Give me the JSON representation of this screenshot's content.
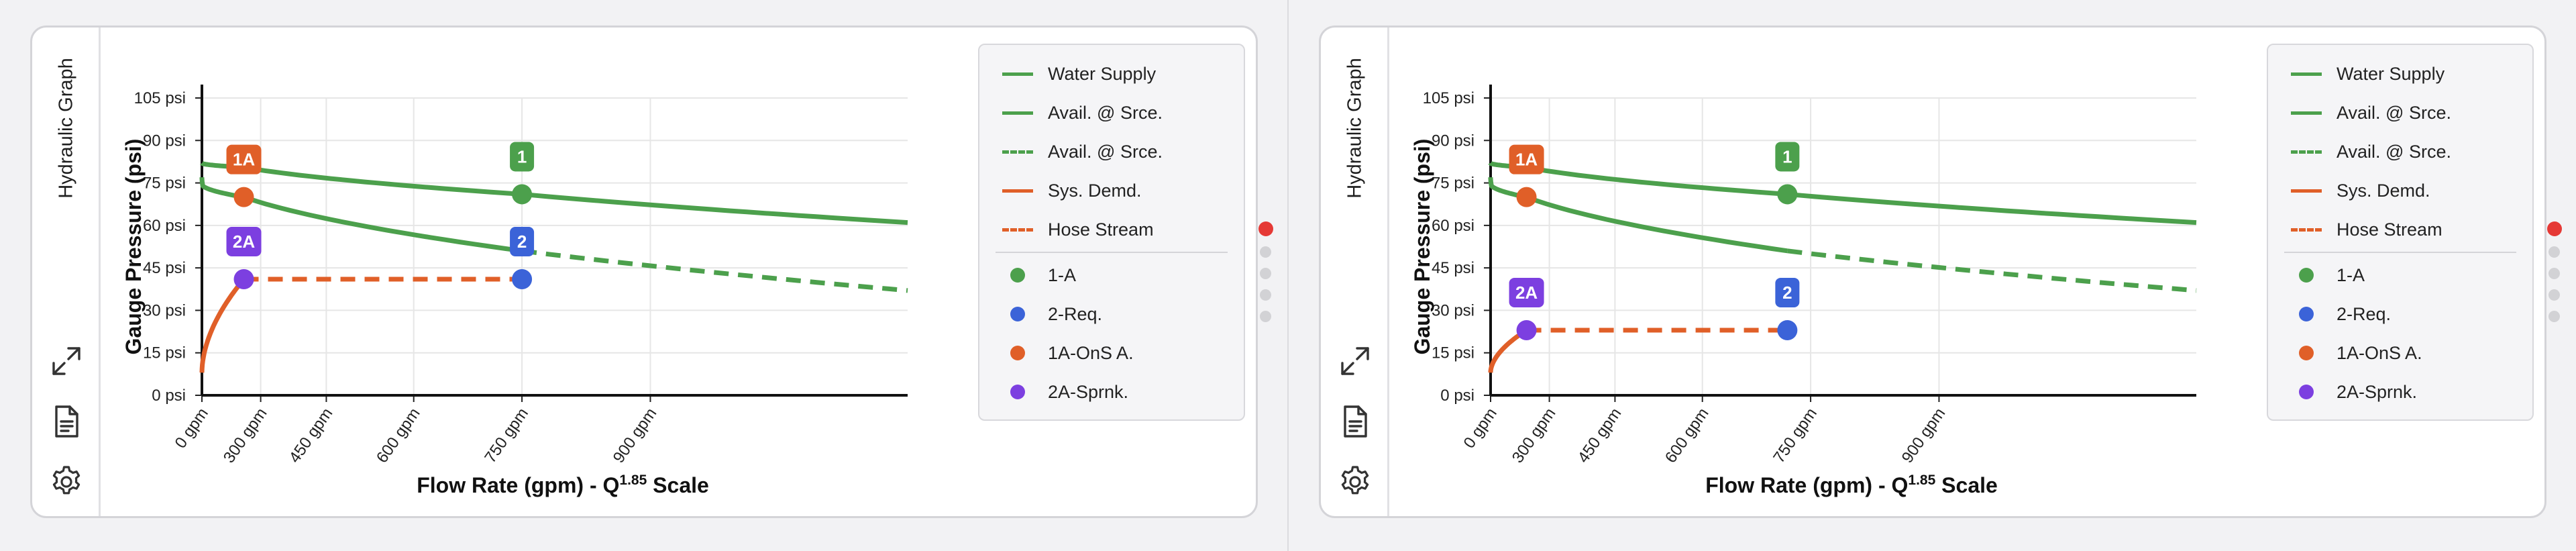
{
  "panels": [
    {
      "side_title": "Hydraulic Graph",
      "chart_data": {
        "type": "line",
        "ylabel": "Gauge Pressure (psi)",
        "xlabel_main": "Flow Rate (gpm) - Q",
        "xlabel_sup": "1.85",
        "xlabel_tail": " Scale",
        "x_scale": "Q^1.85",
        "xlim": [
          0,
          1150
        ],
        "ylim": [
          0,
          105
        ],
        "y_ticks": [
          0,
          15,
          30,
          45,
          60,
          75,
          90,
          105
        ],
        "y_tick_labels": [
          "0 psi",
          "15 psi",
          "30 psi",
          "45 psi",
          "60 psi",
          "75 psi",
          "90 psi",
          "105 psi"
        ],
        "x_ticks": [
          0,
          300,
          450,
          600,
          750,
          900
        ],
        "x_tick_labels": [
          "0 gpm",
          "300 gpm",
          "450 gpm",
          "600 gpm",
          "750 gpm",
          "900 gpm"
        ],
        "grid": true,
        "series": [
          {
            "name": "Water Supply",
            "color": "#4ca04c",
            "style": "solid",
            "x": [
              0,
              250,
              750,
              1150
            ],
            "y": [
              82,
              80.5,
              71,
              61
            ]
          },
          {
            "name": "Avail. @ Srce.",
            "color": "#4ca04c",
            "style": "solid",
            "x": [
              0,
              30,
              250,
              750
            ],
            "y": [
              77,
              74,
              70,
              51
            ]
          },
          {
            "name": "Avail. @ Srce.",
            "color": "#4ca04c",
            "style": "dashed",
            "x": [
              750,
              1150
            ],
            "y": [
              51,
              37
            ]
          },
          {
            "name": "Sys. Demd.",
            "color": "#e05f28",
            "style": "solid",
            "x": [
              0,
              250
            ],
            "y": [
              8,
              41
            ]
          },
          {
            "name": "Hose Stream",
            "color": "#e05f28",
            "style": "dashed",
            "x": [
              250,
              750
            ],
            "y": [
              41,
              41
            ]
          }
        ],
        "points": [
          {
            "name": "1-A",
            "color": "#4ca04c",
            "x": 750,
            "y": 71,
            "badge": "1"
          },
          {
            "name": "2-Req.",
            "color": "#3b63d8",
            "x": 750,
            "y": 41,
            "badge": "2"
          },
          {
            "name": "1A-OnS A.",
            "color": "#e05f28",
            "x": 250,
            "y": 70,
            "badge": "1A"
          },
          {
            "name": "2A-Sprnk.",
            "color": "#7c3fe0",
            "x": 250,
            "y": 41,
            "badge": "2A"
          }
        ]
      },
      "legend": [
        {
          "label": "Water Supply",
          "kind": "line",
          "color": "#4ca04c",
          "style": "solid"
        },
        {
          "label": "Avail. @ Srce.",
          "kind": "line",
          "color": "#4ca04c",
          "style": "solid"
        },
        {
          "label": "Avail. @ Srce.",
          "kind": "line",
          "color": "#4ca04c",
          "style": "dashed"
        },
        {
          "label": "Sys. Demd.",
          "kind": "line",
          "color": "#e05f28",
          "style": "solid"
        },
        {
          "label": "Hose Stream",
          "kind": "line",
          "color": "#e05f28",
          "style": "dashed"
        },
        {
          "kind": "separator"
        },
        {
          "label": "1-A",
          "kind": "dot",
          "color": "#4ca04c"
        },
        {
          "label": "2-Req.",
          "kind": "dot",
          "color": "#3b63d8"
        },
        {
          "label": "1A-OnS A.",
          "kind": "dot",
          "color": "#e05f28"
        },
        {
          "label": "2A-Sprnk.",
          "kind": "dot",
          "color": "#7c3fe0"
        }
      ],
      "pager": {
        "count": 5,
        "active": 0
      }
    },
    {
      "side_title": "Hydraulic Graph",
      "chart_data": {
        "type": "line",
        "ylabel": "Gauge Pressure (psi)",
        "xlabel_main": "Flow Rate (gpm) - Q",
        "xlabel_sup": "1.85",
        "xlabel_tail": " Scale",
        "x_scale": "Q^1.85",
        "xlim": [
          0,
          1150
        ],
        "ylim": [
          0,
          105
        ],
        "y_ticks": [
          0,
          15,
          30,
          45,
          60,
          75,
          90,
          105
        ],
        "y_tick_labels": [
          "0 psi",
          "15 psi",
          "30 psi",
          "45 psi",
          "60 psi",
          "75 psi",
          "90 psi",
          "105 psi"
        ],
        "x_ticks": [
          0,
          300,
          450,
          600,
          750,
          900
        ],
        "x_tick_labels": [
          "0 gpm",
          "300 gpm",
          "450 gpm",
          "600 gpm",
          "750 gpm",
          "900 gpm"
        ],
        "grid": true,
        "series": [
          {
            "name": "Water Supply",
            "color": "#4ca04c",
            "style": "solid",
            "x": [
              0,
              230,
              720,
              1150
            ],
            "y": [
              82,
              80.5,
              71,
              61
            ]
          },
          {
            "name": "Avail. @ Srce.",
            "color": "#4ca04c",
            "style": "solid",
            "x": [
              0,
              30,
              230,
              720
            ],
            "y": [
              77,
              74,
              70,
              51
            ]
          },
          {
            "name": "Avail. @ Srce.",
            "color": "#4ca04c",
            "style": "dashed",
            "x": [
              720,
              1150
            ],
            "y": [
              51,
              37
            ]
          },
          {
            "name": "Sys. Demd.",
            "color": "#e05f28",
            "style": "solid",
            "x": [
              0,
              230
            ],
            "y": [
              8,
              23
            ]
          },
          {
            "name": "Hose Stream",
            "color": "#e05f28",
            "style": "dashed",
            "x": [
              230,
              720
            ],
            "y": [
              23,
              23
            ]
          }
        ],
        "points": [
          {
            "name": "1-A",
            "color": "#4ca04c",
            "x": 720,
            "y": 71,
            "badge": "1"
          },
          {
            "name": "2-Req.",
            "color": "#3b63d8",
            "x": 720,
            "y": 23,
            "badge": "2"
          },
          {
            "name": "1A-OnS A.",
            "color": "#e05f28",
            "x": 230,
            "y": 70,
            "badge": "1A"
          },
          {
            "name": "2A-Sprnk.",
            "color": "#7c3fe0",
            "x": 230,
            "y": 23,
            "badge": "2A"
          }
        ]
      },
      "legend": [
        {
          "label": "Water Supply",
          "kind": "line",
          "color": "#4ca04c",
          "style": "solid"
        },
        {
          "label": "Avail. @ Srce.",
          "kind": "line",
          "color": "#4ca04c",
          "style": "solid"
        },
        {
          "label": "Avail. @ Srce.",
          "kind": "line",
          "color": "#4ca04c",
          "style": "dashed"
        },
        {
          "label": "Sys. Demd.",
          "kind": "line",
          "color": "#e05f28",
          "style": "solid"
        },
        {
          "label": "Hose Stream",
          "kind": "line",
          "color": "#e05f28",
          "style": "dashed"
        },
        {
          "kind": "separator"
        },
        {
          "label": "1-A",
          "kind": "dot",
          "color": "#4ca04c"
        },
        {
          "label": "2-Req.",
          "kind": "dot",
          "color": "#3b63d8"
        },
        {
          "label": "1A-OnS A.",
          "kind": "dot",
          "color": "#e05f28"
        },
        {
          "label": "2A-Sprnk.",
          "kind": "dot",
          "color": "#7c3fe0"
        }
      ],
      "pager": {
        "count": 5,
        "active": 0
      }
    }
  ],
  "icons": [
    "expand-icon",
    "document-icon",
    "gear-icon"
  ]
}
